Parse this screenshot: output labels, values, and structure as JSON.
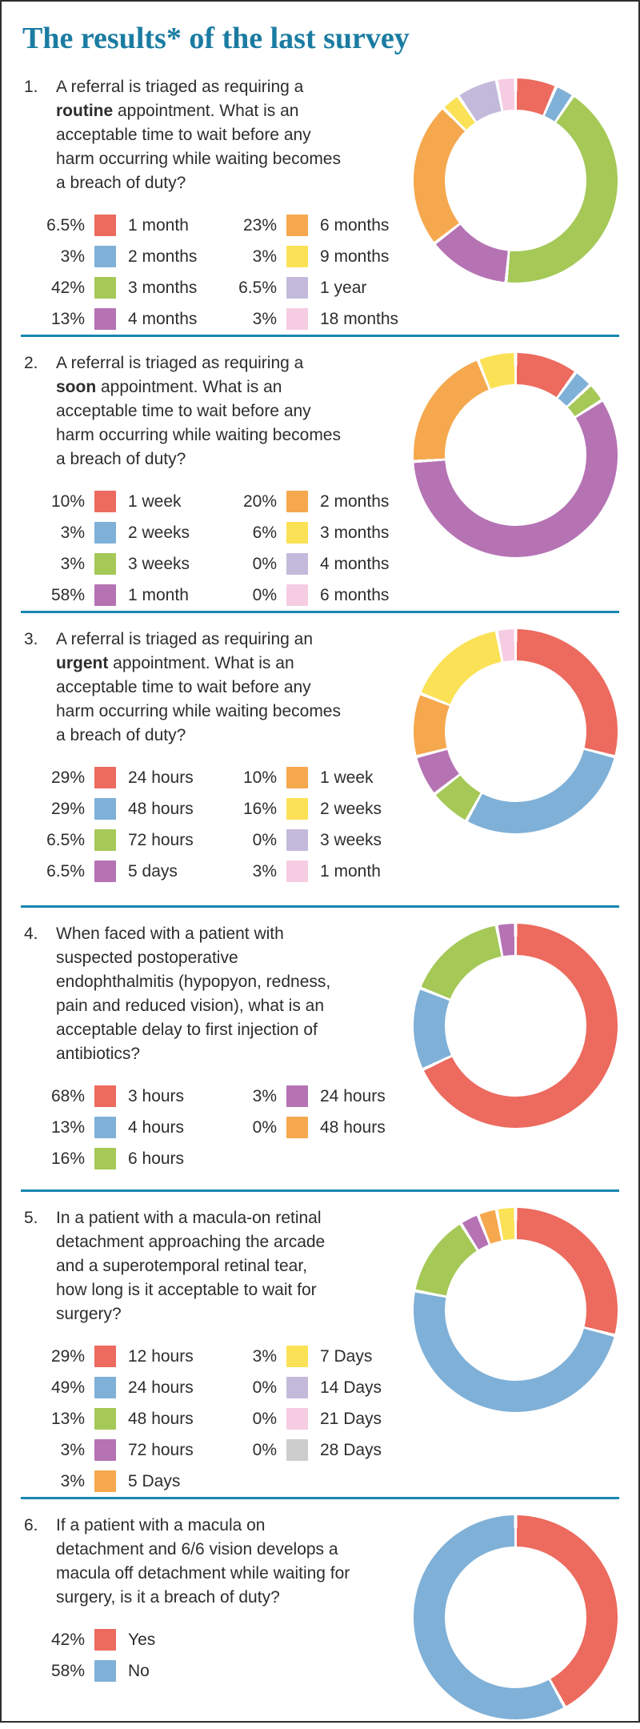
{
  "title": "The results* of the last survey",
  "colors": {
    "title": "#1b7ca2",
    "divider": "#1787b2",
    "text": "#2d2d2d",
    "palette": {
      "red": "#ec6a5e",
      "blue": "#7fb0d7",
      "green": "#a5c857",
      "purple": "#b573b4",
      "orange": "#f5a84e",
      "yellow": "#fbe156",
      "lavender": "#c3badb",
      "pink": "#f6cce3",
      "gray": "#cdcdcd"
    }
  },
  "chart_data": [
    {
      "type": "donut",
      "number": "1.",
      "question_before": "A referral is triaged as requiring a ",
      "question_bold": "routine",
      "question_after": " appointment. What is an acceptable time to wait before any harm occurring while waiting becomes a breach of duty?",
      "categories": [
        "1 month",
        "2 months",
        "3 months",
        "4 months",
        "6 months",
        "9 months",
        "1 year",
        "18 months"
      ],
      "values": [
        6.5,
        3,
        42,
        13,
        23,
        3,
        6.5,
        3
      ],
      "pct_labels": [
        "6.5%",
        "3%",
        "42%",
        "13%",
        "23%",
        "3%",
        "6.5%",
        "3%"
      ],
      "color_names": [
        "red",
        "blue",
        "green",
        "purple",
        "orange",
        "yellow",
        "lavender",
        "pink"
      ],
      "legend_left_count": 4,
      "legend_position": "below-question",
      "start_angle_deg": 0,
      "direction": "clockwise"
    },
    {
      "type": "donut",
      "number": "2.",
      "question_before": "A referral is triaged as requiring a ",
      "question_bold": "soon",
      "question_after": " appointment. What is an acceptable time to wait before any harm occurring while waiting becomes a breach of duty?",
      "categories": [
        "1 week",
        "2 weeks",
        "3 weeks",
        "1 month",
        "2 months",
        "3 months",
        "4 months",
        "6 months"
      ],
      "values": [
        10,
        3,
        3,
        58,
        20,
        6,
        0,
        0
      ],
      "pct_labels": [
        "10%",
        "3%",
        "3%",
        "58%",
        "20%",
        "6%",
        "0%",
        "0%"
      ],
      "color_names": [
        "red",
        "blue",
        "green",
        "purple",
        "orange",
        "yellow",
        "lavender",
        "pink"
      ],
      "legend_left_count": 4,
      "legend_position": "below-question",
      "start_angle_deg": 0,
      "direction": "clockwise"
    },
    {
      "type": "donut",
      "number": "3.",
      "question_before": "A referral is triaged as requiring an ",
      "question_bold": "urgent",
      "question_after": " appointment. What is an acceptable time to wait before any harm occurring while waiting becomes a breach of duty?",
      "categories": [
        "24 hours",
        "48 hours",
        "72 hours",
        "5 days",
        "1 week",
        "2 weeks",
        "3 weeks",
        "1 month"
      ],
      "values": [
        29,
        29,
        6.5,
        6.5,
        10,
        16,
        0,
        3
      ],
      "pct_labels": [
        "29%",
        "29%",
        "6.5%",
        "6.5%",
        "10%",
        "16%",
        "0%",
        "3%"
      ],
      "color_names": [
        "red",
        "blue",
        "green",
        "purple",
        "orange",
        "yellow",
        "lavender",
        "pink"
      ],
      "legend_left_count": 4,
      "legend_position": "below-question",
      "start_angle_deg": 0,
      "direction": "clockwise"
    },
    {
      "type": "donut",
      "number": "4.",
      "question_before": "When faced with a patient with suspected postoperative endophthalmitis (hypopyon, redness, pain and reduced vision), what is an acceptable delay to first injection of antibiotics?",
      "question_bold": "",
      "question_after": "",
      "categories": [
        "3 hours",
        "4 hours",
        "6 hours",
        "24 hours",
        "48 hours"
      ],
      "values": [
        68,
        13,
        16,
        3,
        0
      ],
      "pct_labels": [
        "68%",
        "13%",
        "16%",
        "3%",
        "0%"
      ],
      "color_names": [
        "red",
        "blue",
        "green",
        "purple",
        "orange"
      ],
      "legend_left_count": 3,
      "legend_position": "below-question",
      "start_angle_deg": 0,
      "direction": "clockwise"
    },
    {
      "type": "donut",
      "number": "5.",
      "question_before": "In a patient with a macula-on retinal detachment approaching the arcade and a superotemporal retinal tear, how long is it acceptable to wait for surgery?",
      "question_bold": "",
      "question_after": "",
      "categories": [
        "12 hours",
        "24 hours",
        "48 hours",
        "72 hours",
        "5 Days",
        "7 Days",
        "14 Days",
        "21 Days",
        "28 Days"
      ],
      "values": [
        29,
        49,
        13,
        3,
        3,
        3,
        0,
        0,
        0
      ],
      "pct_labels": [
        "29%",
        "49%",
        "13%",
        "3%",
        "3%",
        "3%",
        "0%",
        "0%",
        "0%"
      ],
      "color_names": [
        "red",
        "blue",
        "green",
        "purple",
        "orange",
        "yellow",
        "lavender",
        "pink",
        "gray"
      ],
      "legend_left_count": 5,
      "legend_position": "below-question",
      "start_angle_deg": 0,
      "direction": "clockwise"
    },
    {
      "type": "donut",
      "number": "6.",
      "question_before": "If a patient with a macula on detachment and 6/6 vision develops a macula off detachment while waiting for surgery, is it a breach of duty?",
      "question_bold": "",
      "question_after": "",
      "categories": [
        "Yes",
        "No"
      ],
      "values": [
        42,
        58
      ],
      "pct_labels": [
        "42%",
        "58%"
      ],
      "color_names": [
        "red",
        "blue"
      ],
      "legend_left_count": 2,
      "legend_position": "below-question",
      "start_angle_deg": 0,
      "direction": "clockwise"
    }
  ]
}
